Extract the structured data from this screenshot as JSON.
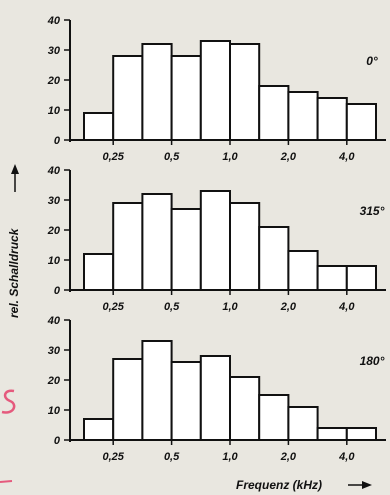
{
  "chart_data": [
    {
      "type": "bar",
      "label": "0°",
      "ylim": [
        0,
        40
      ],
      "yticks": [
        "0",
        "10",
        "20",
        "30",
        "40"
      ],
      "xticks": [
        "0,25",
        "0,5",
        "1,0",
        "2,0",
        "4,0"
      ],
      "values": [
        9,
        28,
        32,
        28,
        33,
        32,
        18,
        16,
        14,
        12
      ]
    },
    {
      "type": "bar",
      "label": "315°",
      "ylim": [
        0,
        40
      ],
      "yticks": [
        "0",
        "10",
        "20",
        "30",
        "40"
      ],
      "xticks": [
        "0,25",
        "0,5",
        "1,0",
        "2,0",
        "4,0"
      ],
      "values": [
        12,
        29,
        32,
        27,
        33,
        29,
        21,
        13,
        8,
        8
      ]
    },
    {
      "type": "bar",
      "label": "180°",
      "ylim": [
        0,
        40
      ],
      "yticks": [
        "0",
        "10",
        "20",
        "30",
        "40"
      ],
      "xticks": [
        "0,25",
        "0,5",
        "1,0",
        "2,0",
        "4,0"
      ],
      "values": [
        7,
        27,
        33,
        26,
        28,
        21,
        15,
        11,
        4,
        4
      ]
    }
  ],
  "ylabel": "rel. Schalldruck",
  "xlabel": "Frequenz (kHz)"
}
